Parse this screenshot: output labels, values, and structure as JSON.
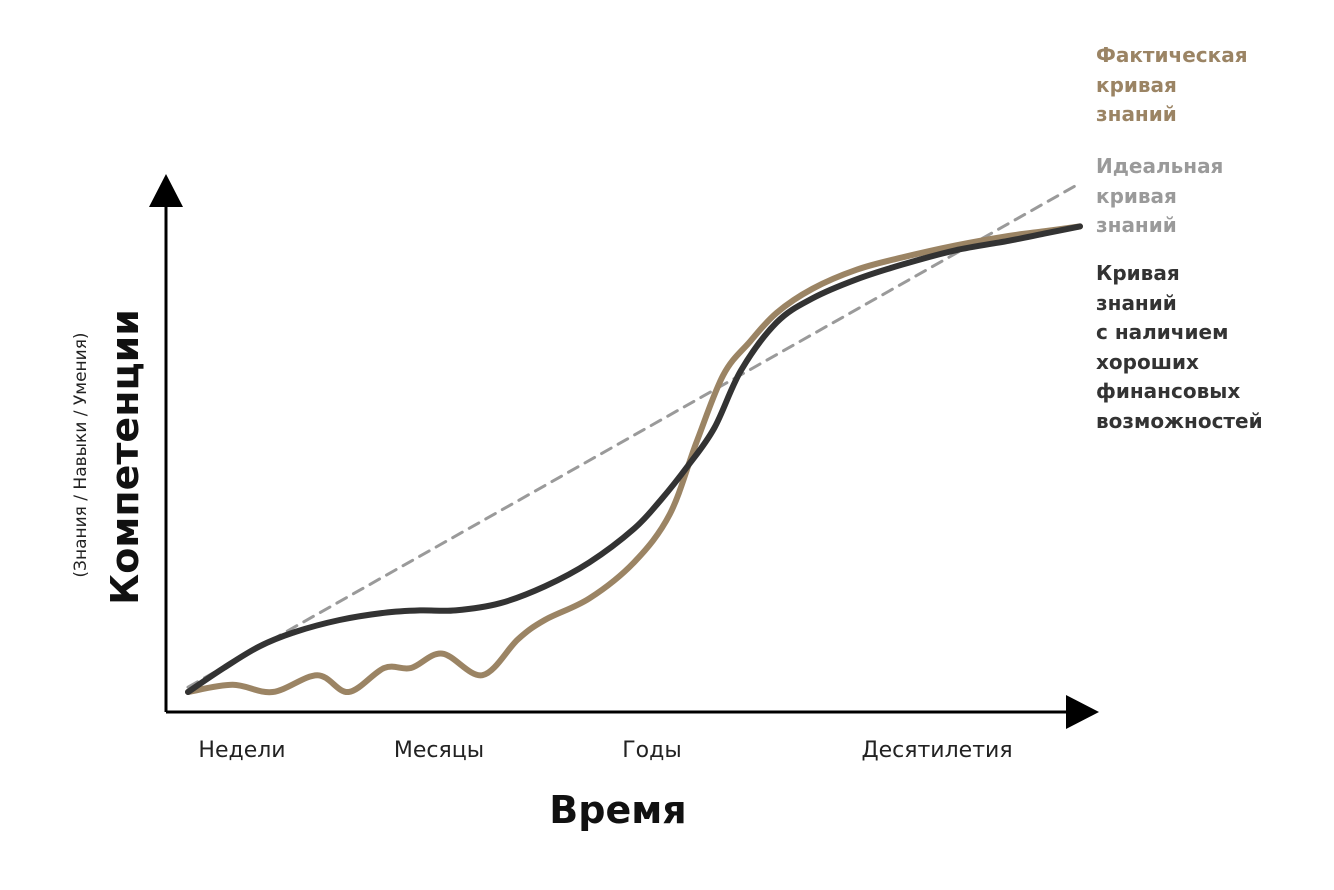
{
  "chart_data": {
    "type": "line",
    "title": "",
    "xlabel": "Время",
    "ylabel": "Компетенции",
    "ylabel_sub": "(Знания / Навыки / Умения)",
    "categories": [
      "Недели",
      "Месяцы",
      "Годы",
      "Десятилетия"
    ],
    "x_range": [
      0,
      100
    ],
    "ylim": [
      0,
      100
    ],
    "grid": false,
    "legend_position": "right",
    "series": [
      {
        "name": "ideal",
        "legend_lines": [
          "Идеальная",
          "кривая",
          "знаний"
        ],
        "color": "#9a9a9a",
        "style": "dashed",
        "x": [
          0,
          100
        ],
        "y": [
          1,
          106
        ]
      },
      {
        "name": "financial",
        "legend_lines": [
          "Кривая",
          "знаний",
          "с наличием",
          "хороших",
          "финансовых",
          "возможностей"
        ],
        "color": "#333333",
        "style": "solid",
        "x": [
          0,
          4,
          8,
          12,
          17,
          22,
          26,
          30,
          35,
          40,
          45,
          50,
          53,
          56,
          59,
          62,
          66,
          70,
          75,
          80,
          86,
          92,
          96,
          100
        ],
        "y": [
          0,
          5,
          9.5,
          12.5,
          15,
          16.5,
          17,
          17,
          18.5,
          22,
          27,
          34,
          40,
          47,
          55,
          67,
          77,
          82,
          86,
          89,
          92,
          94,
          95.5,
          97
        ]
      },
      {
        "name": "actual",
        "legend_lines": [
          "Фактическая",
          "кривая",
          "знаний"
        ],
        "color": "#9b8464",
        "style": "solid",
        "x": [
          0,
          5,
          9.5,
          14.5,
          18,
          22,
          25,
          28.5,
          33,
          37,
          40,
          45,
          50,
          54,
          57,
          60,
          63,
          66,
          70,
          75,
          80,
          86,
          92,
          96,
          100
        ],
        "y": [
          0,
          1.5,
          0,
          3.5,
          0,
          5,
          5,
          8,
          3.5,
          11,
          15,
          19.5,
          27,
          37,
          52,
          66,
          73,
          79,
          84,
          88,
          90.5,
          93,
          95,
          96,
          97
        ]
      }
    ]
  }
}
